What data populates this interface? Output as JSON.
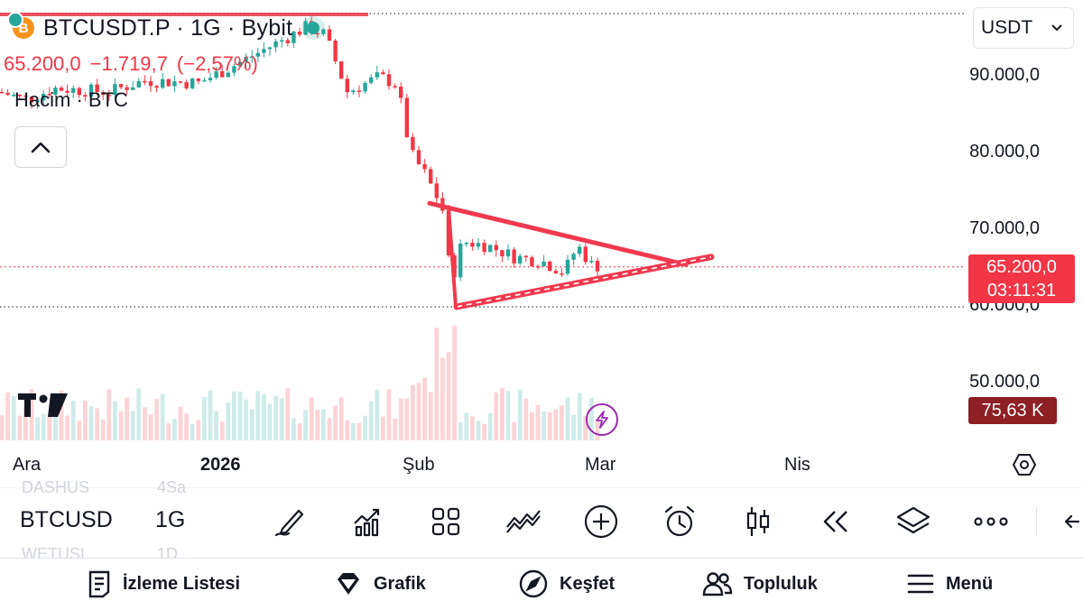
{
  "header": {
    "symbol_title": "BTCUSDT.P · 1G · Bybit",
    "coin_glyph": "B",
    "last_price": "65.200,0",
    "change": "−1.719,7",
    "change_pct": "(−2,57%)",
    "volume_label": "Hacim · BTC"
  },
  "currency_select": {
    "value": "USDT"
  },
  "price_axis": {
    "labels": [
      "90.000,0",
      "80.000,0",
      "70.000,0",
      "60.000,0",
      "50.000,0"
    ],
    "last_price_tag": "65.200,0",
    "countdown": "03:11:31",
    "volume_tag": "75,63 K"
  },
  "time_axis": {
    "labels": [
      {
        "text": "Ara",
        "bold": false
      },
      {
        "text": "2026",
        "bold": true
      },
      {
        "text": "Şub",
        "bold": false
      },
      {
        "text": "Mar",
        "bold": false
      },
      {
        "text": "Nis",
        "bold": false
      }
    ]
  },
  "toolbar": {
    "symbol": "BTCUSD",
    "interval": "1G",
    "ghost_above": [
      "DASHUS",
      "4Sa"
    ],
    "ghost_below": [
      "WETUSI",
      "1D"
    ],
    "icons": [
      "draw-icon",
      "indicators-icon",
      "layout-icon",
      "trend-tools-icon",
      "add-icon",
      "alert-icon",
      "bar-style-icon",
      "replay-icon",
      "layers-icon",
      "more-icon",
      "back-icon"
    ]
  },
  "bottom_nav": {
    "items": [
      {
        "label": "İzleme Listesi",
        "icon": "watchlist-icon"
      },
      {
        "label": "Grafik",
        "icon": "chart-gem-icon"
      },
      {
        "label": "Keşfet",
        "icon": "compass-icon"
      },
      {
        "label": "Topluluk",
        "icon": "community-icon"
      },
      {
        "label": "Menü",
        "icon": "menu-icon"
      }
    ]
  },
  "colors": {
    "up": "#26a69a",
    "down": "#f23645",
    "pattern": "#f0394e",
    "volume_tag": "#8e1f24",
    "accent_purple": "#9c27b0"
  },
  "chart_data": {
    "type": "candlestick",
    "symbol": "BTCUSDT.P",
    "interval": "1G",
    "y_axis_ticks": [
      90000,
      80000,
      70000,
      60000,
      50000
    ],
    "ylim": [
      47000,
      97000
    ],
    "last_price": 65200,
    "grid": false,
    "pattern": {
      "type": "symmetrical-triangle",
      "upper_line": {
        "from": 73500,
        "to": 65500
      },
      "lower_line": {
        "from": 60000,
        "to": 66500
      }
    },
    "approx_path": [
      {
        "x": "Ara",
        "close": 88000
      },
      {
        "x": "2026",
        "close": 89000
      },
      {
        "x": "mid-Jan",
        "close": 95000
      },
      {
        "x": "late-Jan",
        "close": 89000
      },
      {
        "x": "early-Feb",
        "close": 76000
      },
      {
        "x": "Şub 6",
        "close": 62000
      },
      {
        "x": "mid-Feb",
        "close": 68000
      },
      {
        "x": "late-Feb",
        "close": 65000
      },
      {
        "x": "Mar",
        "close": 65200
      }
    ]
  }
}
